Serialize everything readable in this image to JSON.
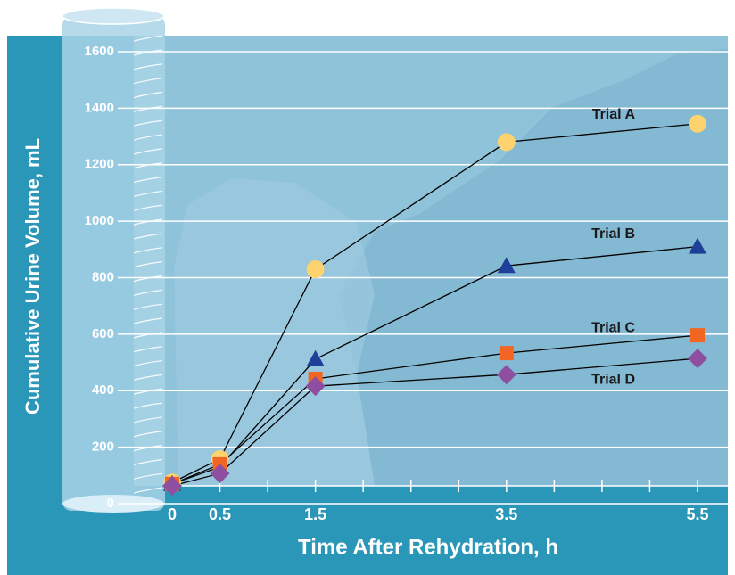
{
  "chart_data": {
    "type": "line",
    "x_label": "Time After Rehydration, h",
    "y_label": "Cumulative Urine Volume, mL",
    "x": [
      0,
      0.5,
      1.5,
      3.5,
      5.5
    ],
    "xlim": [
      0,
      5.5
    ],
    "xticks": [
      0,
      0.5,
      1.5,
      3.5,
      5.5
    ],
    "xminorticks": [
      1,
      2,
      2.5,
      3,
      4,
      4.5,
      5
    ],
    "ylim": [
      0,
      1600
    ],
    "yticks": [
      0,
      200,
      400,
      600,
      800,
      1000,
      1200,
      1400,
      1600
    ],
    "grid": true,
    "series": [
      {
        "name": "Trial A",
        "color": "#fcd36e",
        "marker": "circle",
        "values": [
          75,
          158,
          830,
          1280,
          1345
        ]
      },
      {
        "name": "Trial B",
        "color": "#1f3f99",
        "marker": "triangle",
        "values": [
          70,
          130,
          512,
          842,
          910
        ]
      },
      {
        "name": "Trial C",
        "color": "#f26522",
        "marker": "square",
        "values": [
          70,
          139,
          442,
          533,
          596
        ]
      },
      {
        "name": "Trial D",
        "color": "#8e4fa0",
        "marker": "diamond",
        "values": [
          63,
          107,
          416,
          457,
          514
        ]
      }
    ]
  }
}
